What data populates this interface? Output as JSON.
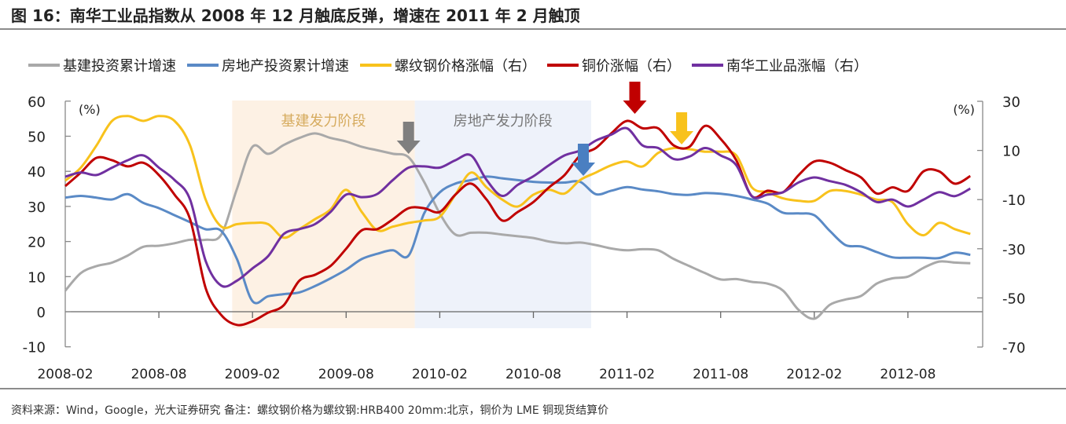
{
  "title": "图 16：南华工业品指数从 2008 年 12 月触底反弹，增速在 2011 年 2 月触顶",
  "footer": "资料来源：Wind，Google，光大证券研究  备注：螺纹钢价格为螺纹钢:HRB400 20mm:北京，铜价为 LME 铜现货结算价",
  "chart_data": {
    "type": "line",
    "title": "南华工业品指数从 2008 年 12 月触底反弹，增速在 2011 年 2 月触顶",
    "x_start": "2008-02",
    "x_end": "2012-12",
    "frequency": "monthly",
    "x_tick_labels": [
      "2008-02",
      "2008-08",
      "2009-02",
      "2009-08",
      "2010-02",
      "2010-08",
      "2011-02",
      "2011-08",
      "2012-02",
      "2012-08"
    ],
    "left_axis": {
      "unit": "(%)",
      "ylim": [
        -10,
        60
      ],
      "ticks": [
        "60",
        "50",
        "40",
        "30",
        "20",
        "10",
        "0",
        "-10"
      ]
    },
    "right_axis": {
      "unit": "(%)",
      "ylim": [
        -70,
        30
      ],
      "ticks": [
        "30",
        "10",
        "-10",
        "-30",
        "-50",
        "-70"
      ]
    },
    "legend_position": "top",
    "series": [
      {
        "name": "基建投资累计增速",
        "axis": "left",
        "color": "#a9a9a9",
        "values": [
          6,
          11,
          13,
          14,
          16,
          18.5,
          18.8,
          19.5,
          20.5,
          20.5,
          22,
          35,
          47,
          45,
          47.5,
          49.5,
          50.8,
          49.5,
          48.5,
          47,
          46,
          45,
          44,
          37,
          28,
          22,
          22.5,
          22.5,
          22,
          21.5,
          21,
          20,
          19.5,
          19.7,
          19,
          18,
          17.5,
          17.8,
          17.5,
          15,
          13,
          11,
          9.2,
          9.3,
          8.5,
          8,
          6,
          0.5,
          -2,
          2,
          3.5,
          4.5,
          8,
          9.5,
          10,
          12.5,
          14.3,
          14,
          13.8
        ]
      },
      {
        "name": "房地产投资累计增速",
        "axis": "left",
        "color": "#5a8ac6",
        "values": [
          32.5,
          33,
          32.5,
          32,
          33.5,
          31,
          29.5,
          27.5,
          25.5,
          23.5,
          23,
          15,
          3,
          4.4,
          5,
          5.5,
          7.3,
          9.5,
          12,
          15,
          16.5,
          17.5,
          16,
          28,
          34,
          36.5,
          37.5,
          38.5,
          38,
          37.5,
          37,
          36.8,
          36.8,
          37,
          33.5,
          34.5,
          35.5,
          34.8,
          34.3,
          33.5,
          33.3,
          33.8,
          33.6,
          33,
          32,
          30.8,
          28.2,
          28,
          27.5,
          23,
          19,
          18.6,
          17,
          15.5,
          15.4,
          15.4,
          15.3,
          16.8,
          16.2
        ]
      },
      {
        "name": "螺纹钢价格涨幅（右）",
        "axis": "right",
        "color": "#f8c21c",
        "values": [
          -2.3,
          3,
          12,
          22,
          24,
          22,
          24,
          22,
          12,
          -10,
          -21,
          -20,
          -19.5,
          -20,
          -25.5,
          -22,
          -18,
          -14,
          -6,
          -15,
          -22.5,
          -21,
          -19.5,
          -18.5,
          -17,
          -8,
          1,
          -5,
          -10,
          -12.8,
          -8,
          -6,
          -7.5,
          -2,
          1,
          4,
          5.5,
          3.5,
          9,
          11,
          10.5,
          9.5,
          9.5,
          8,
          -5,
          -7,
          -9.5,
          -10.5,
          -10.5,
          -6.5,
          -6.5,
          -8,
          -10,
          -11,
          -20,
          -24.5,
          -19.5,
          -22,
          -24
        ]
      },
      {
        "name": "铜价涨幅（右）",
        "axis": "right",
        "color": "#c00000",
        "values": [
          -4.5,
          1,
          7,
          6,
          3.5,
          5,
          0,
          -8,
          -18,
          -46,
          -57,
          -61,
          -59.5,
          -56,
          -53,
          -43,
          -40.6,
          -37,
          -30,
          -22.5,
          -22,
          -18,
          -13.5,
          -13.5,
          -15,
          -8,
          -3.5,
          -10,
          -18.5,
          -15,
          -11,
          -5,
          0,
          8,
          11,
          17,
          22,
          19,
          19,
          12,
          11.5,
          20,
          14.7,
          6,
          -8.6,
          -6.4,
          -7,
          0,
          5.5,
          5,
          2,
          -1,
          -7.5,
          -5,
          -6.5,
          1.5,
          1.5,
          -3.5,
          -0.4
        ]
      },
      {
        "name": "南华工业品涨幅（右）",
        "axis": "right",
        "color": "#7030a0",
        "values": [
          -0.7,
          1,
          0,
          3,
          6,
          8,
          3,
          -2,
          -10,
          -35,
          -45,
          -43,
          -38,
          -33,
          -24,
          -22,
          -20,
          -15,
          -8,
          -9,
          -7.7,
          -2,
          3,
          3.5,
          3,
          6,
          8,
          -2,
          -8.5,
          -4,
          -0.5,
          4,
          8,
          10,
          14,
          16.5,
          19,
          12,
          11,
          6.5,
          7.5,
          11,
          8,
          4,
          -8.6,
          -8,
          -7,
          -3,
          -1,
          -2.5,
          -4,
          -7,
          -11,
          -10,
          -12.8,
          -10,
          -7,
          -8.6,
          -5.5
        ]
      }
    ],
    "annotations": {
      "stages": [
        {
          "label": "基建发力阶段",
          "start_month": 10.7,
          "end_month": 22.4,
          "color": "#fdf1e4",
          "text_color": "#d6ab5e"
        },
        {
          "label": "房地产发力阶段",
          "start_month": 22.4,
          "end_month": 33.7,
          "color": "#eef2fa",
          "text_color": "#777777"
        }
      ],
      "arrows": [
        {
          "series": "基建投资累计增速",
          "month": 22,
          "color": "#7f7f7f"
        },
        {
          "series": "房地产投资累计增速",
          "month": 33.2,
          "color": "#4a7fc1"
        },
        {
          "series": "铜价涨幅（右）",
          "month": 36.5,
          "color": "#c00000"
        },
        {
          "series": "螺纹钢价格涨幅（右）",
          "month": 39.5,
          "color": "#f8c21c"
        }
      ]
    }
  }
}
